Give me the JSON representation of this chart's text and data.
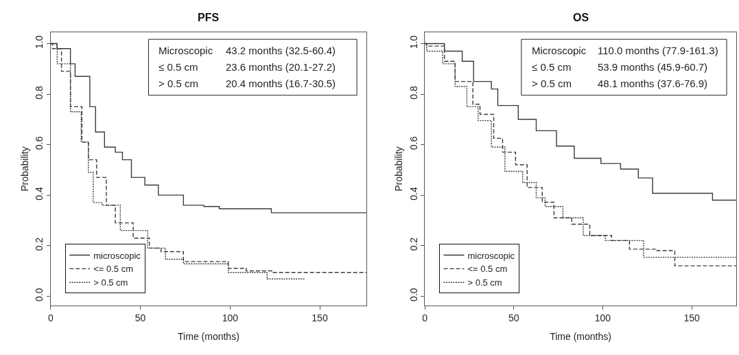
{
  "chart_data": [
    {
      "type": "step",
      "title": "PFS",
      "xlabel": "Time (months)",
      "ylabel": "Probability",
      "xlim": [
        0,
        176
      ],
      "xticks": [
        0,
        50,
        100,
        150
      ],
      "ylim": [
        -0.037,
        1.044
      ],
      "yticks": [
        {
          "value": 0,
          "label": "0.0"
        },
        {
          "value": 0.2,
          "label": "0.2"
        },
        {
          "value": 0.4,
          "label": "0.4"
        },
        {
          "value": 0.6,
          "label": "0.6"
        },
        {
          "value": 0.8,
          "label": "0.8"
        },
        {
          "value": 1,
          "label": "1.0"
        }
      ],
      "legend": "bottom left",
      "annotations": [
        "Microscopic",
        "43.2 months (32.5-60.4)",
        "≤ 0.5 cm",
        "23.6 months (20.1-27.2)",
        "> 0.5 cm",
        "20.4 months (16.7-30.5)"
      ],
      "series": [
        {
          "name": "microscopic",
          "color": "#3a3a3a",
          "line_style": "solid",
          "x": [
            0,
            3.5,
            11,
            13.6,
            21.8,
            25,
            30,
            36,
            40,
            45,
            52.5,
            60,
            74,
            85.4,
            94,
            123,
            176
          ],
          "values": [
            1.0,
            0.98,
            0.92,
            0.87,
            0.75,
            0.65,
            0.59,
            0.57,
            0.54,
            0.47,
            0.44,
            0.4,
            0.36,
            0.355,
            0.346,
            0.33,
            0.33
          ]
        },
        {
          "name": "<= 0.5 cm",
          "color": "#3a3a3a",
          "line_style": "dashed",
          "x": [
            0,
            1,
            6,
            11,
            17.4,
            21,
            25.6,
            31,
            36,
            46,
            55,
            61.5,
            74,
            86.6,
            99,
            109,
            124,
            176
          ],
          "values": [
            1.0,
            0.98,
            0.89,
            0.75,
            0.61,
            0.54,
            0.47,
            0.36,
            0.29,
            0.23,
            0.19,
            0.176,
            0.137,
            0.137,
            0.11,
            0.1,
            0.094,
            0.094
          ]
        },
        {
          "name": "> 0.5 cm",
          "color": "#3a3a3a",
          "line_style": "dotted",
          "x": [
            0,
            3.6,
            11,
            17,
            21,
            23.7,
            28.7,
            38.8,
            48.8,
            54,
            64,
            74,
            99,
            120.6,
            142
          ],
          "values": [
            1.0,
            0.92,
            0.73,
            0.61,
            0.49,
            0.37,
            0.36,
            0.26,
            0.26,
            0.19,
            0.146,
            0.128,
            0.094,
            0.068,
            0.068
          ]
        }
      ]
    },
    {
      "type": "step",
      "title": "OS",
      "xlabel": "Time (months)",
      "ylabel": "Probability",
      "xlim": [
        0,
        175
      ],
      "xticks": [
        0,
        50,
        100,
        150
      ],
      "ylim": [
        -0.037,
        1.044
      ],
      "yticks": [
        {
          "value": 0,
          "label": "0.0"
        },
        {
          "value": 0.2,
          "label": "0.2"
        },
        {
          "value": 0.4,
          "label": "0.4"
        },
        {
          "value": 0.6,
          "label": "0.6"
        },
        {
          "value": 0.8,
          "label": "0.8"
        },
        {
          "value": 1,
          "label": "1.0"
        }
      ],
      "legend": "bottom left",
      "annotations": [
        "Microscopic",
        "110.0 months (77.9-161.3)",
        "≤ 0.5 cm",
        "53.9 months (45.9-60.7)",
        "> 0.5 cm",
        "48.1 months (37.6-76.9)"
      ],
      "series": [
        {
          "name": "microscopic",
          "color": "#3a3a3a",
          "line_style": "solid",
          "x": [
            0,
            6,
            11,
            21,
            27.4,
            37.4,
            41,
            52.5,
            62.6,
            74,
            84,
            99,
            110,
            120,
            128,
            161.7,
            175
          ],
          "values": [
            1.0,
            1.0,
            0.97,
            0.93,
            0.85,
            0.82,
            0.755,
            0.7,
            0.655,
            0.594,
            0.546,
            0.525,
            0.503,
            0.468,
            0.407,
            0.38,
            0.38
          ]
        },
        {
          "name": "<= 0.5 cm",
          "color": "#3a3a3a",
          "line_style": "dashed",
          "x": [
            0,
            1,
            11,
            17,
            27,
            31,
            38.7,
            43.7,
            51,
            57.5,
            66,
            72.6,
            82.6,
            92.7,
            105,
            115,
            130,
            140.5,
            175
          ],
          "values": [
            1.0,
            0.99,
            0.93,
            0.85,
            0.76,
            0.72,
            0.625,
            0.57,
            0.52,
            0.43,
            0.372,
            0.31,
            0.285,
            0.24,
            0.22,
            0.186,
            0.18,
            0.12,
            0.12
          ]
        },
        {
          "name": "> 0.5 cm",
          "color": "#3a3a3a",
          "line_style": "dotted",
          "x": [
            0,
            1,
            10,
            17,
            23.6,
            30,
            37.4,
            45,
            55,
            62.6,
            67.6,
            77.6,
            89,
            101.5,
            123,
            175
          ],
          "values": [
            1.0,
            0.97,
            0.92,
            0.83,
            0.75,
            0.695,
            0.59,
            0.494,
            0.45,
            0.39,
            0.355,
            0.31,
            0.24,
            0.22,
            0.154,
            0.154
          ]
        }
      ]
    }
  ]
}
